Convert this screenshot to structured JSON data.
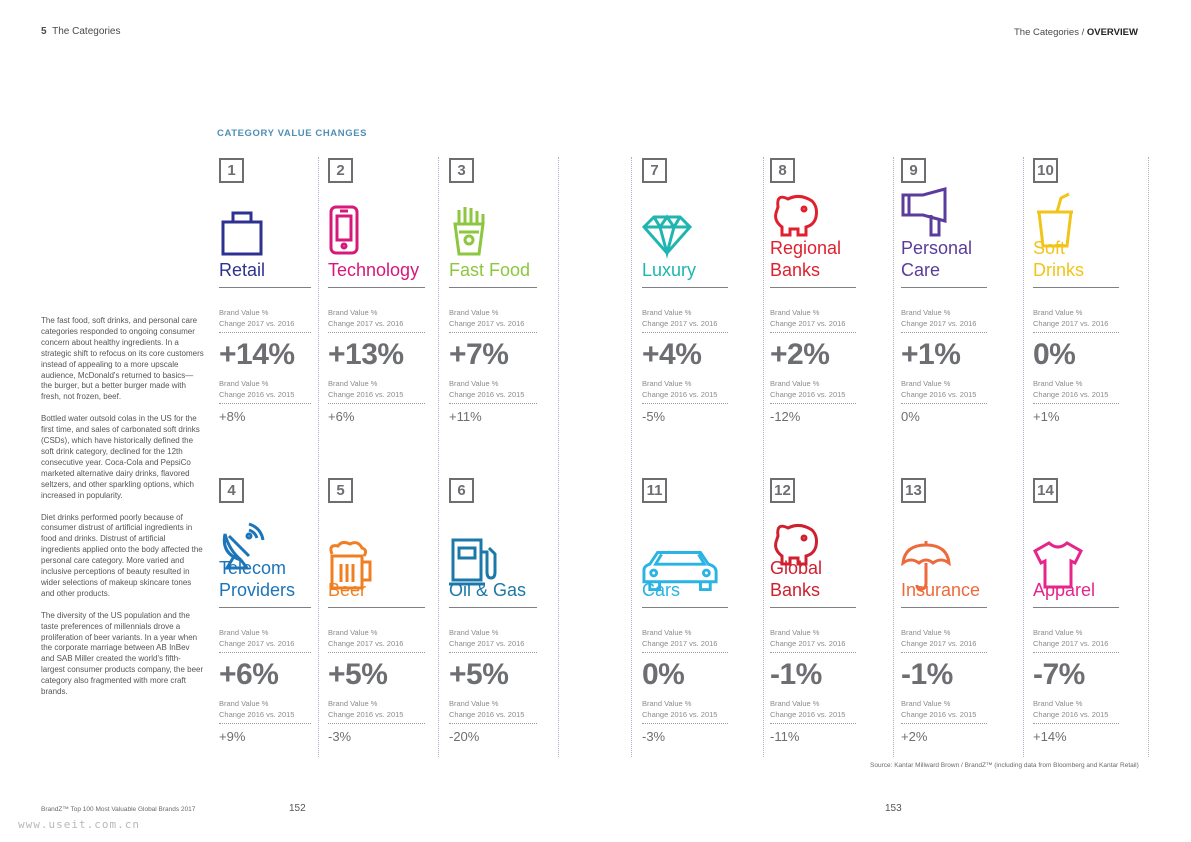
{
  "header": {
    "left_number": "5",
    "left_title": "The Categories",
    "right_section": "The Categories",
    "right_divider": "/",
    "right_current": "OVERVIEW"
  },
  "section_title": "CATEGORY VALUE CHANGES",
  "intro": [
    "The fast food, soft drinks, and personal care categories responded to ongoing consumer concern about healthy ingredients. In a strategic shift to refocus on its core customers instead of appealing to a more upscale audience, McDonald's returned to basics—the burger, but a better burger made with fresh, not frozen, beef.",
    "Bottled water outsold colas in the US for the first time, and sales of carbonated soft drinks (CSDs), which have historically defined the soft drink category, declined for the 12th consecutive year. Coca-Cola and PepsiCo marketed alternative dairy drinks, flavored seltzers, and other sparkling options, which increased in popularity.",
    "Diet drinks performed poorly because of consumer distrust of artificial ingredients in food and drinks. Distrust of artificial ingredients applied onto the body affected the personal care category. More varied and inclusive perceptions of beauty resulted in wider selections of makeup skincare tones and other products.",
    "The diversity of the US population and the taste preferences of millennials drove a proliferation of beer variants. In a year when the corporate marriage between AB InBev and SAB Miller created the world's fifth-largest consumer products company, the beer category also fragmented with more craft brands."
  ],
  "label_2017_line1": "Brand Value %",
  "label_2017_line2": "Change 2017 vs. 2016",
  "label_2016_line1": "Brand Value %",
  "label_2016_line2": "Change 2016 vs. 2015",
  "categories": [
    {
      "rank": "1",
      "name": "Retail",
      "color": "#2e3192",
      "icon": "shopping-bag-icon",
      "change_2017": "+14%",
      "change_2016": "+8%"
    },
    {
      "rank": "2",
      "name": "Technology",
      "color": "#d6187a",
      "icon": "smartphone-icon",
      "change_2017": "+13%",
      "change_2016": "+6%"
    },
    {
      "rank": "3",
      "name": "Fast Food",
      "color": "#8dc63f",
      "icon": "fries-icon",
      "change_2017": "+7%",
      "change_2016": "+11%"
    },
    {
      "rank": "7",
      "name": "Luxury",
      "color": "#1fb5b0",
      "icon": "diamond-icon",
      "change_2017": "+4%",
      "change_2016": "-5%"
    },
    {
      "rank": "8",
      "name": "Regional Banks",
      "name_line1": "Regional",
      "name_line2": "Banks",
      "color": "#e0202e",
      "icon": "piggy-bank-icon",
      "change_2017": "+2%",
      "change_2016": "-12%"
    },
    {
      "rank": "9",
      "name": "Personal Care",
      "name_line1": "Personal",
      "name_line2": "Care",
      "color": "#5b3c9c",
      "icon": "hair-dryer-icon",
      "change_2017": "+1%",
      "change_2016": "0%"
    },
    {
      "rank": "10",
      "name": "Soft Drinks",
      "color": "#f2c41a",
      "icon": "soft-drink-cup-icon",
      "change_2017": "0%",
      "change_2016": "+1%"
    },
    {
      "rank": "4",
      "name": "Telecom Providers",
      "name_line1": "Telecom",
      "name_line2": "Providers",
      "color": "#1c74b9",
      "icon": "satellite-dish-icon",
      "change_2017": "+6%",
      "change_2016": "+9%"
    },
    {
      "rank": "5",
      "name": "Beer",
      "color": "#f07f23",
      "icon": "beer-mug-icon",
      "change_2017": "+5%",
      "change_2016": "-3%"
    },
    {
      "rank": "6",
      "name": "Oil & Gas",
      "color": "#1b78a8",
      "icon": "fuel-pump-icon",
      "change_2017": "+5%",
      "change_2016": "-20%"
    },
    {
      "rank": "11",
      "name": "Cars",
      "color": "#29b4e3",
      "icon": "car-icon",
      "change_2017": "0%",
      "change_2016": "-3%"
    },
    {
      "rank": "12",
      "name": "Global Banks",
      "name_line1": "Global",
      "name_line2": "Banks",
      "color": "#cf2030",
      "icon": "piggy-bank-icon",
      "change_2017": "-1%",
      "change_2016": "-11%"
    },
    {
      "rank": "13",
      "name": "Insurance",
      "color": "#ee6a3c",
      "icon": "umbrella-icon",
      "change_2017": "-1%",
      "change_2016": "+2%"
    },
    {
      "rank": "14",
      "name": "Apparel",
      "color": "#e5258c",
      "icon": "tshirt-icon",
      "change_2017": "-7%",
      "change_2016": "+14%"
    }
  ],
  "source": "Source: Kantar Millward Brown / BrandZ™ (including data from Bloomberg and Kantar Retail)",
  "footer": {
    "publication": "BrandZ™ Top 100 Most Valuable Global Brands 2017",
    "page_left": "152",
    "page_right": "153",
    "watermark": "www.useit.com.cn"
  }
}
